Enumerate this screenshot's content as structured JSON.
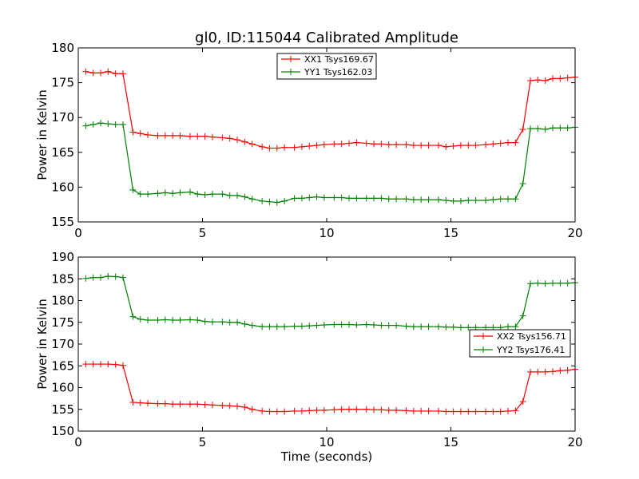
{
  "chart_data": [
    {
      "type": "line",
      "title": "gl0, ID:115044 Calibrated Amplitude",
      "xlabel": "",
      "ylabel": "Power in Kelvin",
      "xlim": [
        0,
        20
      ],
      "ylim": [
        155,
        180
      ],
      "xticks": [
        0,
        5,
        10,
        15,
        20
      ],
      "yticks": [
        155,
        160,
        165,
        170,
        175,
        180
      ],
      "xtick_labels": [
        "0",
        "5",
        "10",
        "15",
        "20"
      ],
      "ytick_labels": [
        "155",
        "160",
        "165",
        "170",
        "175",
        "180"
      ],
      "grid": false,
      "legend_position": "top-center",
      "x": [
        0.3,
        0.6,
        0.9,
        1.2,
        1.5,
        1.8,
        2.2,
        2.5,
        2.8,
        3.2,
        3.5,
        3.8,
        4.1,
        4.5,
        4.8,
        5.1,
        5.4,
        5.8,
        6.1,
        6.4,
        6.7,
        7.0,
        7.4,
        7.7,
        8.0,
        8.3,
        8.7,
        9.0,
        9.3,
        9.6,
        9.9,
        10.3,
        10.6,
        10.9,
        11.2,
        11.6,
        11.9,
        12.2,
        12.5,
        12.8,
        13.2,
        13.5,
        13.8,
        14.1,
        14.5,
        14.8,
        15.1,
        15.4,
        15.7,
        16.0,
        16.4,
        16.7,
        17.0,
        17.3,
        17.6,
        17.9,
        18.2,
        18.5,
        18.8,
        19.1,
        19.4,
        19.7,
        20.0
      ],
      "series": [
        {
          "name": "XX1 Tsys169.67",
          "color": "#ff0000",
          "values": [
            176.6,
            176.4,
            176.4,
            176.6,
            176.3,
            176.3,
            167.9,
            167.7,
            167.5,
            167.4,
            167.4,
            167.4,
            167.4,
            167.3,
            167.3,
            167.3,
            167.2,
            167.1,
            167.0,
            166.8,
            166.5,
            166.2,
            165.8,
            165.6,
            165.6,
            165.7,
            165.7,
            165.8,
            165.9,
            166.0,
            166.1,
            166.2,
            166.2,
            166.3,
            166.4,
            166.3,
            166.2,
            166.2,
            166.1,
            166.1,
            166.1,
            166.0,
            166.0,
            166.0,
            166.0,
            165.8,
            165.9,
            166.0,
            166.0,
            166.0,
            166.1,
            166.2,
            166.3,
            166.4,
            166.4,
            168.3,
            175.3,
            175.4,
            175.3,
            175.6,
            175.6,
            175.7,
            175.8
          ]
        },
        {
          "name": "YY1 Tsys162.03",
          "color": "#008000",
          "values": [
            168.8,
            169.0,
            169.2,
            169.1,
            169.0,
            169.0,
            159.6,
            159.0,
            159.0,
            159.1,
            159.2,
            159.1,
            159.2,
            159.3,
            159.0,
            158.9,
            159.0,
            159.0,
            158.8,
            158.8,
            158.6,
            158.3,
            158.0,
            157.9,
            157.8,
            158.0,
            158.4,
            158.4,
            158.5,
            158.6,
            158.5,
            158.5,
            158.5,
            158.4,
            158.4,
            158.4,
            158.4,
            158.4,
            158.3,
            158.3,
            158.3,
            158.2,
            158.2,
            158.2,
            158.2,
            158.1,
            158.0,
            158.0,
            158.1,
            158.1,
            158.1,
            158.2,
            158.3,
            158.3,
            158.3,
            160.5,
            168.4,
            168.4,
            168.3,
            168.5,
            168.5,
            168.5,
            168.6
          ]
        }
      ]
    },
    {
      "type": "line",
      "title": "",
      "xlabel": "Time (seconds)",
      "ylabel": "Power in Kelvin",
      "xlim": [
        0,
        20
      ],
      "ylim": [
        150,
        190
      ],
      "xticks": [
        0,
        5,
        10,
        15,
        20
      ],
      "yticks": [
        150,
        155,
        160,
        165,
        170,
        175,
        180,
        185,
        190
      ],
      "xtick_labels": [
        "0",
        "5",
        "10",
        "15",
        "20"
      ],
      "ytick_labels": [
        "150",
        "155",
        "160",
        "165",
        "170",
        "175",
        "180",
        "185",
        "190"
      ],
      "grid": false,
      "legend_position": "center-right",
      "x": [
        0.3,
        0.6,
        0.9,
        1.2,
        1.5,
        1.8,
        2.2,
        2.5,
        2.8,
        3.2,
        3.5,
        3.8,
        4.1,
        4.5,
        4.8,
        5.1,
        5.4,
        5.8,
        6.1,
        6.4,
        6.7,
        7.0,
        7.4,
        7.7,
        8.0,
        8.3,
        8.7,
        9.0,
        9.3,
        9.6,
        9.9,
        10.3,
        10.6,
        10.9,
        11.2,
        11.6,
        11.9,
        12.2,
        12.5,
        12.8,
        13.2,
        13.5,
        13.8,
        14.1,
        14.5,
        14.8,
        15.1,
        15.4,
        15.7,
        16.0,
        16.4,
        16.7,
        17.0,
        17.3,
        17.6,
        17.9,
        18.2,
        18.5,
        18.8,
        19.1,
        19.4,
        19.7,
        20.0
      ],
      "series": [
        {
          "name": "XX2 Tsys156.71",
          "color": "#ff0000",
          "values": [
            165.4,
            165.4,
            165.4,
            165.4,
            165.3,
            165.1,
            156.6,
            156.5,
            156.4,
            156.3,
            156.3,
            156.2,
            156.2,
            156.2,
            156.2,
            156.1,
            156.0,
            155.9,
            155.8,
            155.7,
            155.5,
            155.0,
            154.6,
            154.5,
            154.5,
            154.5,
            154.6,
            154.6,
            154.7,
            154.8,
            154.8,
            154.9,
            155.0,
            155.0,
            155.0,
            155.0,
            154.9,
            154.9,
            154.8,
            154.8,
            154.7,
            154.6,
            154.6,
            154.6,
            154.6,
            154.5,
            154.5,
            154.5,
            154.5,
            154.5,
            154.5,
            154.5,
            154.5,
            154.6,
            154.7,
            156.8,
            163.6,
            163.6,
            163.6,
            163.7,
            163.9,
            164.0,
            164.2
          ]
        },
        {
          "name": "YY2 Tsys176.41",
          "color": "#008000",
          "values": [
            185.1,
            185.3,
            185.3,
            185.6,
            185.5,
            185.3,
            176.3,
            175.7,
            175.5,
            175.5,
            175.6,
            175.5,
            175.5,
            175.6,
            175.5,
            175.2,
            175.1,
            175.1,
            175.0,
            175.0,
            174.6,
            174.3,
            174.0,
            174.0,
            174.0,
            174.0,
            174.1,
            174.1,
            174.2,
            174.3,
            174.4,
            174.5,
            174.5,
            174.5,
            174.4,
            174.5,
            174.4,
            174.3,
            174.3,
            174.3,
            174.1,
            174.0,
            174.0,
            174.0,
            174.0,
            173.9,
            173.9,
            173.8,
            173.8,
            173.8,
            173.8,
            173.8,
            173.8,
            174.0,
            174.0,
            176.5,
            183.9,
            184.0,
            183.9,
            184.0,
            184.0,
            184.0,
            184.1
          ]
        }
      ]
    }
  ]
}
